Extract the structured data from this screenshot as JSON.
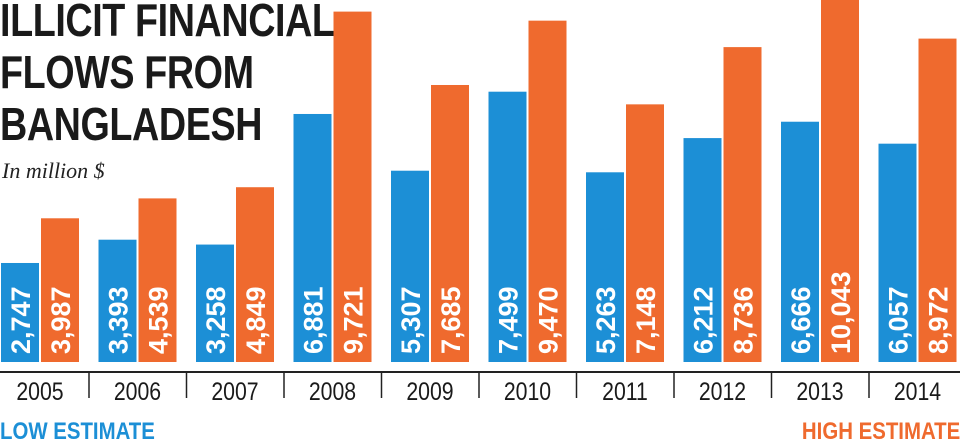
{
  "title_lines": [
    "ILLICIT FINANCIAL",
    "FLOWS FROM",
    "BANGLADESH"
  ],
  "subtitle": "In million $",
  "legend": {
    "low": "LOW ESTIMATE",
    "high": "HIGH ESTIMATE"
  },
  "colors": {
    "low": "#1c8fd6",
    "high": "#ef6a2e",
    "axis": "#222222"
  },
  "chart_data": {
    "type": "bar",
    "title": "ILLICIT FINANCIAL FLOWS FROM BANGLADESH",
    "subtitle": "In million $",
    "categories": [
      "2005",
      "2006",
      "2007",
      "2008",
      "2009",
      "2010",
      "2011",
      "2012",
      "2013",
      "2014"
    ],
    "series": [
      {
        "name": "LOW ESTIMATE",
        "values": [
          2747,
          3393,
          3258,
          6881,
          5307,
          7499,
          5263,
          6212,
          6666,
          6057
        ],
        "labels": [
          "2,747",
          "3,393",
          "3,258",
          "6,881",
          "5,307",
          "7,499",
          "5,263",
          "6,212",
          "6,666",
          "6,057"
        ]
      },
      {
        "name": "HIGH ESTIMATE",
        "values": [
          3987,
          4539,
          4849,
          9721,
          7685,
          9470,
          7148,
          8736,
          10043,
          8972
        ],
        "labels": [
          "3,987",
          "4,539",
          "4,849",
          "9,721",
          "7,685",
          "9,470",
          "7,148",
          "8,736",
          "10,043",
          "8,972"
        ]
      }
    ],
    "ylim": [
      0,
      10043
    ],
    "grid": false,
    "legend_position": "bottom"
  }
}
